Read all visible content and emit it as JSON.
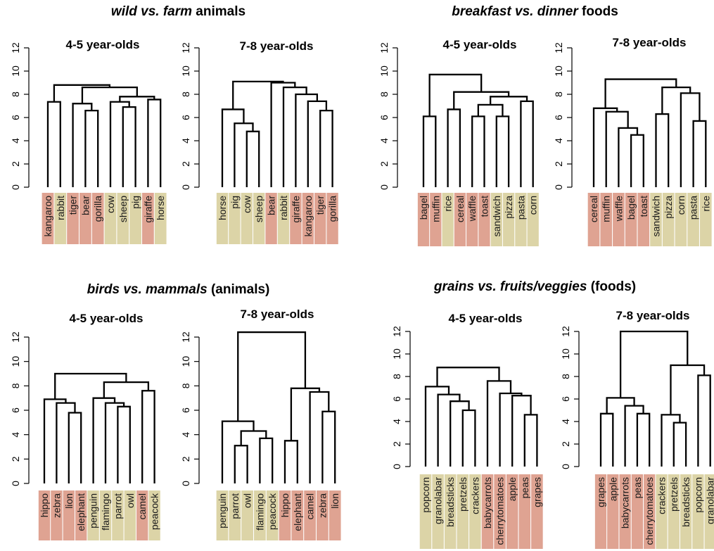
{
  "colors": {
    "wild": "#dfa392",
    "farm": "#dcd4a7",
    "line": "#000000"
  },
  "group_titles": [
    {
      "em": "wild vs. farm",
      "rest": " animals"
    },
    {
      "em": "breakfast vs. dinner",
      "rest": " foods"
    },
    {
      "em": "birds vs. mammals",
      "rest": " (animals)"
    },
    {
      "em": "grains vs. fruits/veggies",
      "rest": " (foods)"
    }
  ],
  "chart_data": [
    {
      "type": "dendrogram",
      "group": 0,
      "title": "4-5 year-olds",
      "ylim": [
        0,
        12
      ],
      "yticks": [
        0,
        2,
        4,
        6,
        8,
        10,
        12
      ],
      "leaves": [
        {
          "label": "kangaroo",
          "category": "wild"
        },
        {
          "label": "rabbit",
          "category": "farm"
        },
        {
          "label": "tiger",
          "category": "wild"
        },
        {
          "label": "bear",
          "category": "wild"
        },
        {
          "label": "gorilla",
          "category": "wild"
        },
        {
          "label": "cow",
          "category": "farm"
        },
        {
          "label": "sheep",
          "category": "farm"
        },
        {
          "label": "pig",
          "category": "farm"
        },
        {
          "label": "giraffe",
          "category": "wild"
        },
        {
          "label": "horse",
          "category": "farm"
        }
      ],
      "merges": [
        {
          "a": 4,
          "b": 5,
          "h": 6.6
        },
        {
          "a": 7,
          "b": 8,
          "h": 6.9
        },
        {
          "a": 3,
          "b": 11,
          "h": 7.2
        },
        {
          "a": 6,
          "b": 12,
          "h": 7.35
        },
        {
          "a": 1,
          "b": 2,
          "h": 7.35
        },
        {
          "a": 9,
          "b": 10,
          "h": 7.55
        },
        {
          "a": 14,
          "b": 16,
          "h": 7.8
        },
        {
          "a": 13,
          "b": 17,
          "h": 8.6
        },
        {
          "a": 15,
          "b": 18,
          "h": 8.8
        }
      ]
    },
    {
      "type": "dendrogram",
      "group": 0,
      "title": "7-8 year-olds",
      "ylim": [
        0,
        12
      ],
      "yticks": [
        0,
        2,
        4,
        6,
        8,
        10,
        12
      ],
      "leaves": [
        {
          "label": "horse",
          "category": "farm"
        },
        {
          "label": "pig",
          "category": "farm"
        },
        {
          "label": "cow",
          "category": "farm"
        },
        {
          "label": "sheep",
          "category": "farm"
        },
        {
          "label": "bear",
          "category": "wild"
        },
        {
          "label": "rabbit",
          "category": "farm"
        },
        {
          "label": "giraffe",
          "category": "wild"
        },
        {
          "label": "kangaroo",
          "category": "wild"
        },
        {
          "label": "tiger",
          "category": "wild"
        },
        {
          "label": "gorilla",
          "category": "wild"
        }
      ],
      "merges": [
        {
          "a": 3,
          "b": 4,
          "h": 4.8
        },
        {
          "a": 2,
          "b": 11,
          "h": 5.5
        },
        {
          "a": 1,
          "b": 12,
          "h": 6.7
        },
        {
          "a": 9,
          "b": 10,
          "h": 6.6
        },
        {
          "a": 8,
          "b": 14,
          "h": 7.4
        },
        {
          "a": 7,
          "b": 15,
          "h": 8.0
        },
        {
          "a": 6,
          "b": 16,
          "h": 8.6
        },
        {
          "a": 5,
          "b": 17,
          "h": 9.0
        },
        {
          "a": 13,
          "b": 18,
          "h": 9.1
        }
      ]
    },
    {
      "type": "dendrogram",
      "group": 1,
      "title": "4-5 year-olds",
      "ylim": [
        0,
        12
      ],
      "yticks": [
        0,
        2,
        4,
        6,
        8,
        10,
        12
      ],
      "leaves": [
        {
          "label": "bagel",
          "category": "wild"
        },
        {
          "label": "muffin",
          "category": "wild"
        },
        {
          "label": "rice",
          "category": "farm"
        },
        {
          "label": "cereal",
          "category": "wild"
        },
        {
          "label": "waffle",
          "category": "wild"
        },
        {
          "label": "toast",
          "category": "wild"
        },
        {
          "label": "sandwich",
          "category": "farm"
        },
        {
          "label": "pizza",
          "category": "farm"
        },
        {
          "label": "pasta",
          "category": "farm"
        },
        {
          "label": "corn",
          "category": "farm"
        }
      ],
      "merges": [
        {
          "a": 1,
          "b": 2,
          "h": 6.1
        },
        {
          "a": 5,
          "b": 6,
          "h": 6.1
        },
        {
          "a": 7,
          "b": 8,
          "h": 6.1
        },
        {
          "a": 3,
          "b": 4,
          "h": 6.7
        },
        {
          "a": 12,
          "b": 13,
          "h": 7.1
        },
        {
          "a": 9,
          "b": 10,
          "h": 7.4
        },
        {
          "a": 15,
          "b": 16,
          "h": 7.8
        },
        {
          "a": 14,
          "b": 17,
          "h": 8.2
        },
        {
          "a": 11,
          "b": 18,
          "h": 9.7
        }
      ]
    },
    {
      "type": "dendrogram",
      "group": 1,
      "title": "7-8 year-olds",
      "ylim": [
        0,
        12
      ],
      "yticks": [
        0,
        2,
        4,
        6,
        8,
        10,
        12
      ],
      "leaves": [
        {
          "label": "cereal",
          "category": "wild"
        },
        {
          "label": "muffin",
          "category": "wild"
        },
        {
          "label": "waffle",
          "category": "wild"
        },
        {
          "label": "bagel",
          "category": "wild"
        },
        {
          "label": "toast",
          "category": "wild"
        },
        {
          "label": "sandwich",
          "category": "farm"
        },
        {
          "label": "pizza",
          "category": "farm"
        },
        {
          "label": "corn",
          "category": "farm"
        },
        {
          "label": "pasta",
          "category": "farm"
        },
        {
          "label": "rice",
          "category": "farm"
        }
      ],
      "merges": [
        {
          "a": 4,
          "b": 5,
          "h": 4.5
        },
        {
          "a": 3,
          "b": 11,
          "h": 5.1
        },
        {
          "a": 2,
          "b": 12,
          "h": 6.5
        },
        {
          "a": 1,
          "b": 13,
          "h": 6.8
        },
        {
          "a": 9,
          "b": 10,
          "h": 5.7
        },
        {
          "a": 8,
          "b": 15,
          "h": 8.1
        },
        {
          "a": 6,
          "b": 7,
          "h": 6.3
        },
        {
          "a": 17,
          "b": 16,
          "h": 8.6
        },
        {
          "a": 14,
          "b": 18,
          "h": 9.3
        }
      ]
    },
    {
      "type": "dendrogram",
      "group": 2,
      "title": "4-5 year-olds",
      "ylim": [
        0,
        12
      ],
      "yticks": [
        0,
        2,
        4,
        6,
        8,
        10,
        12
      ],
      "leaves": [
        {
          "label": "hippo",
          "category": "wild"
        },
        {
          "label": "zebra",
          "category": "wild"
        },
        {
          "label": "lion",
          "category": "wild"
        },
        {
          "label": "elephant",
          "category": "wild"
        },
        {
          "label": "penguin",
          "category": "farm"
        },
        {
          "label": "flamingo",
          "category": "farm"
        },
        {
          "label": "parrot",
          "category": "farm"
        },
        {
          "label": "owl",
          "category": "farm"
        },
        {
          "label": "camel",
          "category": "wild"
        },
        {
          "label": "peacock",
          "category": "farm"
        }
      ],
      "merges": [
        {
          "a": 3,
          "b": 4,
          "h": 5.8
        },
        {
          "a": 2,
          "b": 11,
          "h": 6.6
        },
        {
          "a": 1,
          "b": 12,
          "h": 6.9
        },
        {
          "a": 7,
          "b": 8,
          "h": 6.3
        },
        {
          "a": 6,
          "b": 14,
          "h": 6.6
        },
        {
          "a": 5,
          "b": 15,
          "h": 7.0
        },
        {
          "a": 9,
          "b": 10,
          "h": 7.6
        },
        {
          "a": 16,
          "b": 17,
          "h": 8.3
        },
        {
          "a": 13,
          "b": 18,
          "h": 9.0
        }
      ]
    },
    {
      "type": "dendrogram",
      "group": 2,
      "title": "7-8 year-olds",
      "ylim": [
        0,
        12
      ],
      "yticks": [
        0,
        2,
        4,
        6,
        8,
        10,
        12
      ],
      "leaves": [
        {
          "label": "penguin",
          "category": "farm"
        },
        {
          "label": "parrot",
          "category": "farm"
        },
        {
          "label": "owl",
          "category": "farm"
        },
        {
          "label": "flamingo",
          "category": "farm"
        },
        {
          "label": "peacock",
          "category": "farm"
        },
        {
          "label": "hippo",
          "category": "wild"
        },
        {
          "label": "elephant",
          "category": "wild"
        },
        {
          "label": "camel",
          "category": "wild"
        },
        {
          "label": "zebra",
          "category": "wild"
        },
        {
          "label": "lion",
          "category": "wild"
        }
      ],
      "merges": [
        {
          "a": 2,
          "b": 3,
          "h": 3.1
        },
        {
          "a": 4,
          "b": 5,
          "h": 3.7
        },
        {
          "a": 11,
          "b": 12,
          "h": 4.3
        },
        {
          "a": 1,
          "b": 13,
          "h": 5.1
        },
        {
          "a": 6,
          "b": 7,
          "h": 3.5
        },
        {
          "a": 9,
          "b": 10,
          "h": 5.9
        },
        {
          "a": 8,
          "b": 16,
          "h": 7.5
        },
        {
          "a": 15,
          "b": 17,
          "h": 7.8
        },
        {
          "a": 14,
          "b": 18,
          "h": 12.4
        }
      ]
    },
    {
      "type": "dendrogram",
      "group": 3,
      "title": "4-5 year-olds",
      "ylim": [
        0,
        12
      ],
      "yticks": [
        0,
        2,
        4,
        6,
        8,
        10,
        12
      ],
      "leaves": [
        {
          "label": "popcorn",
          "category": "farm"
        },
        {
          "label": "granolabar",
          "category": "farm"
        },
        {
          "label": "breadsticks",
          "category": "farm"
        },
        {
          "label": "pretzels",
          "category": "farm"
        },
        {
          "label": "crackers",
          "category": "farm"
        },
        {
          "label": "babycarrots",
          "category": "wild"
        },
        {
          "label": "cherrytomatoes",
          "category": "wild"
        },
        {
          "label": "apple",
          "category": "wild"
        },
        {
          "label": "peas",
          "category": "wild"
        },
        {
          "label": "grapes",
          "category": "wild"
        }
      ],
      "merges": [
        {
          "a": 4,
          "b": 5,
          "h": 5.0
        },
        {
          "a": 3,
          "b": 11,
          "h": 5.8
        },
        {
          "a": 2,
          "b": 12,
          "h": 6.4
        },
        {
          "a": 1,
          "b": 13,
          "h": 7.1
        },
        {
          "a": 9,
          "b": 10,
          "h": 4.6
        },
        {
          "a": 8,
          "b": 15,
          "h": 6.3
        },
        {
          "a": 7,
          "b": 16,
          "h": 6.5
        },
        {
          "a": 6,
          "b": 17,
          "h": 7.6
        },
        {
          "a": 14,
          "b": 18,
          "h": 8.8
        }
      ]
    },
    {
      "type": "dendrogram",
      "group": 3,
      "title": "7-8 year-olds",
      "ylim": [
        0,
        12
      ],
      "yticks": [
        0,
        2,
        4,
        6,
        8,
        10,
        12
      ],
      "leaves": [
        {
          "label": "grapes",
          "category": "wild"
        },
        {
          "label": "apple",
          "category": "wild"
        },
        {
          "label": "babycarrots",
          "category": "wild"
        },
        {
          "label": "peas",
          "category": "wild"
        },
        {
          "label": "cherrytomatoes",
          "category": "wild"
        },
        {
          "label": "crackers",
          "category": "farm"
        },
        {
          "label": "pretzels",
          "category": "farm"
        },
        {
          "label": "breadsticks",
          "category": "farm"
        },
        {
          "label": "popcorn",
          "category": "farm"
        },
        {
          "label": "granolabar",
          "category": "farm"
        }
      ],
      "merges": [
        {
          "a": 1,
          "b": 2,
          "h": 4.7
        },
        {
          "a": 4,
          "b": 5,
          "h": 4.7
        },
        {
          "a": 3,
          "b": 12,
          "h": 5.4
        },
        {
          "a": 11,
          "b": 13,
          "h": 6.1
        },
        {
          "a": 7,
          "b": 8,
          "h": 3.9
        },
        {
          "a": 6,
          "b": 15,
          "h": 4.6
        },
        {
          "a": 9,
          "b": 10,
          "h": 8.1
        },
        {
          "a": 16,
          "b": 17,
          "h": 9.0
        },
        {
          "a": 14,
          "b": 18,
          "h": 12.0
        }
      ]
    }
  ]
}
